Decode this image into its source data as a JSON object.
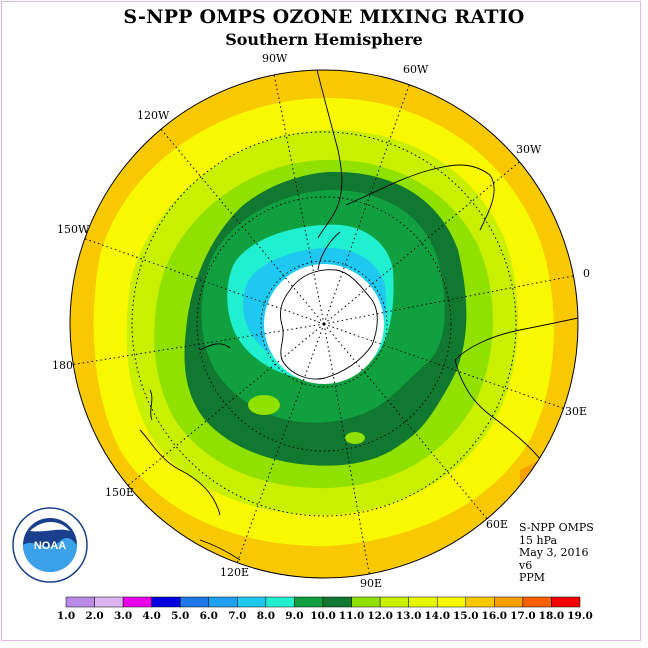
{
  "title": "S-NPP OMPS OZONE MIXING RATIO",
  "subtitle": "Southern Hemisphere",
  "longitude_labels": [
    "90W",
    "60W",
    "30W",
    "0",
    "30E",
    "60E",
    "90E",
    "120E",
    "150E",
    "180",
    "150W",
    "120W"
  ],
  "info": {
    "line1": "S-NPP OMPS",
    "line2": "15 hPa",
    "line3": "May 3, 2016",
    "line4": "v6",
    "line5": "PPM"
  },
  "logo_text": "NOAA",
  "logo_ring_text": "NATIONAL OCEANIC AND ATMOSPHERIC ADMINISTRATION · U.S. DEPARTMENT OF COMMERCE",
  "colorbar": {
    "ticks": [
      "1.0",
      "2.0",
      "3.0",
      "4.0",
      "5.0",
      "6.0",
      "7.0",
      "8.0",
      "9.0",
      "10.0",
      "11.0",
      "12.0",
      "13.0",
      "14.0",
      "15.0",
      "16.0",
      "17.0",
      "18.0",
      "19.0"
    ],
    "colors": [
      "#b98ae8",
      "#dcb4f0",
      "#e800e8",
      "#0000e0",
      "#1e78e8",
      "#1ea0f0",
      "#1ec8f0",
      "#20f0d0",
      "#10a040",
      "#107830",
      "#90e000",
      "#c8f000",
      "#e8f800",
      "#f8f800",
      "#f8c800",
      "#f8a000",
      "#f86000",
      "#f00000",
      "#8a5030"
    ]
  },
  "chart_data": {
    "type": "map",
    "projection": "south polar stereographic",
    "variable": "ozone mixing ratio",
    "level": "15 hPa",
    "units": "PPM",
    "date": "May 3, 2016",
    "contour_levels": [
      1,
      2,
      3,
      4,
      5,
      6,
      7,
      8,
      9,
      10,
      11,
      12,
      13,
      14,
      15,
      16,
      17,
      18,
      19
    ],
    "approx_values_by_region": {
      "polar_night_cap_no_data": "white",
      "inner_ring": "7-8",
      "collar": "9-11",
      "midlatitudes": "12-14",
      "outer_edge": "15-16"
    }
  }
}
